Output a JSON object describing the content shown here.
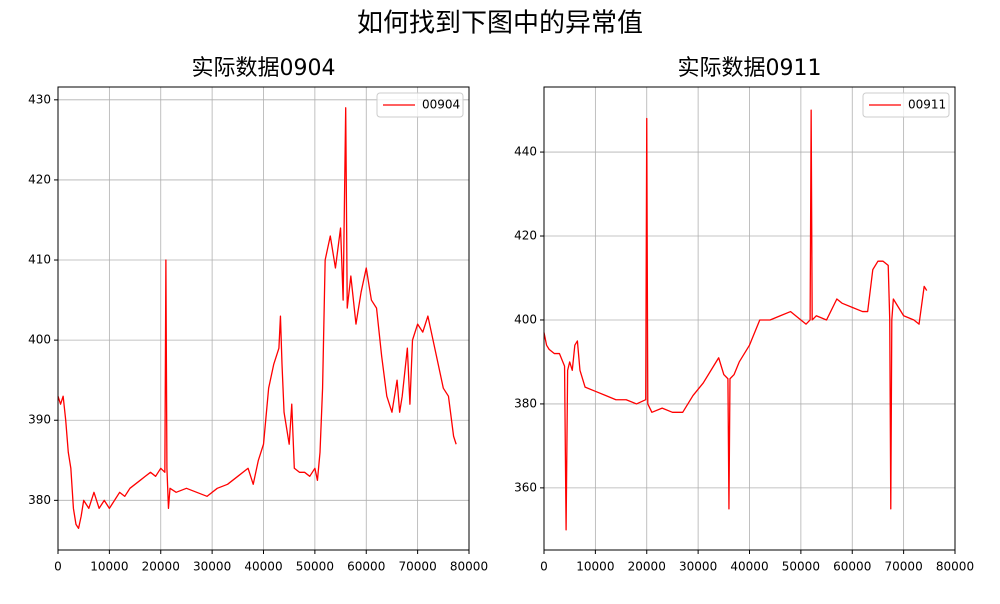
{
  "title": "如何找到下图中的异常值",
  "chart_data": [
    {
      "type": "line",
      "title": "实际数据0904",
      "grid": true,
      "legend": "upper right",
      "xlim": [
        0,
        80000
      ],
      "xticks": [
        0,
        10000,
        20000,
        30000,
        40000,
        50000,
        60000,
        70000,
        80000
      ],
      "ylim": [
        373.8,
        431.6
      ],
      "yticks": [
        380,
        390,
        400,
        410,
        420,
        430
      ],
      "x": [
        0,
        500,
        1000,
        1500,
        2000,
        2500,
        3000,
        3500,
        4000,
        4500,
        5000,
        6000,
        7000,
        8000,
        9000,
        10000,
        11000,
        12000,
        13000,
        14000,
        15000,
        16000,
        17000,
        18000,
        19000,
        20000,
        20800,
        21000,
        21200,
        21500,
        21800,
        23000,
        25000,
        27000,
        29000,
        31000,
        33000,
        35000,
        37000,
        38000,
        39000,
        40000,
        41000,
        42000,
        43000,
        43300,
        43600,
        44000,
        45000,
        45500,
        46000,
        47000,
        48000,
        49000,
        50000,
        50500,
        51000,
        51500,
        52000,
        53000,
        54000,
        55000,
        55500,
        56000,
        56300,
        57000,
        58000,
        59000,
        60000,
        61000,
        62000,
        63000,
        64000,
        65000,
        66000,
        66500,
        67000,
        68000,
        68500,
        69000,
        70000,
        71000,
        72000,
        73000,
        74000,
        75000,
        76000,
        77000,
        77500
      ],
      "series": [
        {
          "name": "00904",
          "color": "#ff0000",
          "values": [
            393,
            392,
            393,
            390,
            386,
            384,
            379,
            377,
            376.5,
            378,
            380,
            379,
            381,
            379,
            380,
            379,
            380,
            381,
            380.5,
            381.5,
            382,
            382.5,
            383,
            383.5,
            383,
            384,
            383.5,
            410,
            384,
            379,
            381.5,
            381,
            381.5,
            381,
            380.5,
            381.5,
            382,
            383,
            384,
            382,
            385,
            387,
            394,
            397,
            399,
            403,
            397,
            391,
            387,
            392,
            384,
            383.5,
            383.5,
            383,
            384,
            382.5,
            386,
            394,
            410,
            413,
            409,
            414,
            405,
            429,
            404,
            408,
            402,
            406,
            409,
            405,
            404,
            398,
            393,
            391,
            395,
            391,
            393,
            399,
            392,
            400,
            402,
            401,
            403,
            400,
            397,
            394,
            393,
            388,
            387
          ]
        }
      ]
    },
    {
      "type": "line",
      "title": "实际数据0911",
      "grid": true,
      "legend": "upper right",
      "xlim": [
        0,
        80000
      ],
      "xticks": [
        0,
        10000,
        20000,
        30000,
        40000,
        50000,
        60000,
        70000,
        80000
      ],
      "ylim": [
        345.2,
        455.5
      ],
      "yticks": [
        360,
        380,
        400,
        420,
        440
      ],
      "x": [
        0,
        500,
        1000,
        2000,
        3000,
        4000,
        4300,
        4600,
        5000,
        5500,
        6000,
        6500,
        7000,
        8000,
        10000,
        12000,
        14000,
        16000,
        18000,
        19800,
        20000,
        20200,
        21000,
        23000,
        25000,
        27000,
        29000,
        31000,
        33000,
        34000,
        35000,
        35800,
        36000,
        36200,
        37000,
        38000,
        40000,
        42000,
        44000,
        46000,
        48000,
        50000,
        51000,
        51800,
        52000,
        52200,
        53000,
        55000,
        57000,
        58000,
        60000,
        62000,
        63000,
        64000,
        65000,
        66000,
        67000,
        67300,
        67500,
        67700,
        68000,
        70000,
        72000,
        73000,
        74000,
        74500
      ],
      "series": [
        {
          "name": "00911",
          "color": "#ff0000",
          "values": [
            397,
            394,
            393,
            392,
            392,
            389,
            350,
            388,
            390,
            388,
            394,
            395,
            388,
            384,
            383,
            382,
            381,
            381,
            380,
            381,
            448,
            380,
            378,
            379,
            378,
            378,
            382,
            385,
            389,
            391,
            387,
            386,
            355,
            386,
            387,
            390,
            394,
            400,
            400,
            401,
            402,
            400,
            399,
            400,
            450,
            400,
            401,
            400,
            405,
            404,
            403,
            402,
            402,
            412,
            414,
            414,
            413,
            400,
            355,
            400,
            405,
            401,
            400,
            399,
            408,
            407
          ]
        }
      ]
    }
  ]
}
